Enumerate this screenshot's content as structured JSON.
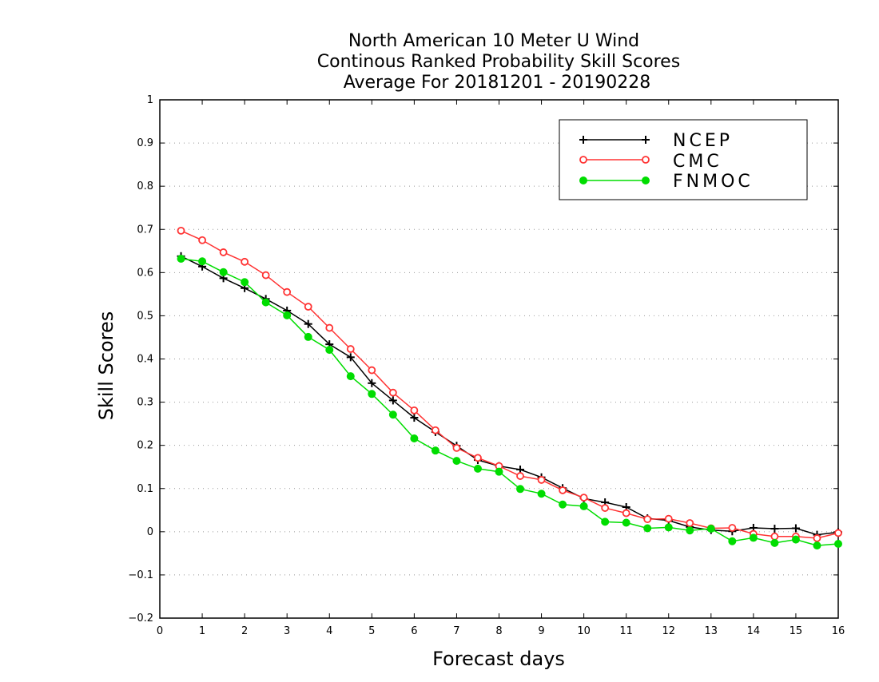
{
  "chart_data": {
    "type": "line",
    "title_lines": [
      "North American 10 Meter U Wind",
      "Continous Ranked Probability Skill Scores",
      "Average For 20181201 - 20190228"
    ],
    "xlabel": "Forecast days",
    "ylabel": "Skill Scores",
    "xlim": [
      0,
      16
    ],
    "ylim": [
      -0.2,
      1
    ],
    "x_ticks": [
      0,
      1,
      2,
      3,
      4,
      5,
      6,
      7,
      8,
      9,
      10,
      11,
      12,
      13,
      14,
      15,
      16
    ],
    "y_ticks": [
      -0.2,
      -0.1,
      0,
      0.1,
      0.2,
      0.3,
      0.4,
      0.5,
      0.6,
      0.7,
      0.8,
      0.9,
      1
    ],
    "y_tick_labels": [
      "−0.2",
      "−0.1",
      "0",
      "0.1",
      "0.2",
      "0.3",
      "0.4",
      "0.5",
      "0.6",
      "0.7",
      "0.8",
      "0.9",
      "1"
    ],
    "grid": "horizontal dotted",
    "legend_position": "top-right",
    "x": [
      0.5,
      1,
      1.5,
      2,
      2.5,
      3,
      3.5,
      4,
      4.5,
      5,
      5.5,
      6,
      6.5,
      7,
      7.5,
      8,
      8.5,
      9,
      9.5,
      10,
      10.5,
      11,
      11.5,
      12,
      12.5,
      13,
      13.5,
      14,
      14.5,
      15,
      15.5,
      16
    ],
    "series": [
      {
        "name": "NCEP",
        "color": "#000000",
        "marker": "plus",
        "values": [
          0.638,
          0.614,
          0.587,
          0.564,
          0.539,
          0.512,
          0.481,
          0.434,
          0.404,
          0.344,
          0.304,
          0.264,
          0.231,
          0.199,
          0.166,
          0.152,
          0.144,
          0.126,
          0.101,
          0.077,
          0.068,
          0.057,
          0.031,
          0.026,
          0.011,
          0.004,
          0.001,
          0.009,
          0.007,
          0.008,
          -0.007,
          -0.001
        ]
      },
      {
        "name": "CMC",
        "color": "#ff3333",
        "marker": "open-circle",
        "values": [
          0.697,
          0.675,
          0.647,
          0.625,
          0.594,
          0.555,
          0.521,
          0.472,
          0.423,
          0.374,
          0.322,
          0.281,
          0.235,
          0.194,
          0.171,
          0.152,
          0.129,
          0.12,
          0.096,
          0.079,
          0.055,
          0.043,
          0.029,
          0.03,
          0.02,
          0.008,
          0.009,
          -0.005,
          -0.011,
          -0.011,
          -0.015,
          -0.003
        ]
      },
      {
        "name": "FNMOC",
        "color": "#00dd00",
        "marker": "filled-circle",
        "values": [
          0.632,
          0.626,
          0.601,
          0.578,
          0.531,
          0.501,
          0.451,
          0.421,
          0.36,
          0.319,
          0.271,
          0.216,
          0.188,
          0.164,
          0.146,
          0.139,
          0.099,
          0.088,
          0.063,
          0.059,
          0.023,
          0.021,
          0.008,
          0.01,
          0.003,
          0.007,
          -0.022,
          -0.014,
          -0.026,
          -0.018,
          -0.032,
          -0.028
        ]
      }
    ]
  }
}
